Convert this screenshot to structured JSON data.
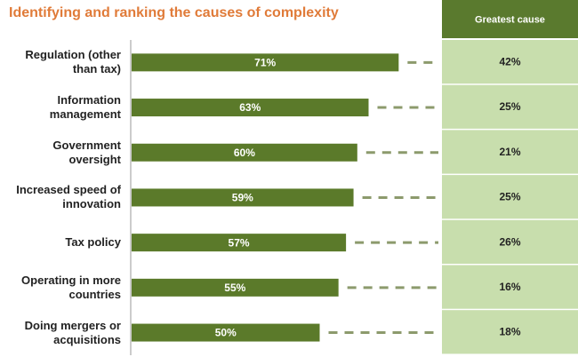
{
  "chart_data": {
    "type": "bar",
    "title": "Identifying and ranking the causes of complexity",
    "categories": [
      "Regulation (other than tax)",
      "Information management",
      "Government oversight",
      "Increased speed of innovation",
      "Tax policy",
      "Operating in more countries",
      "Doing mergers or acquisitions"
    ],
    "values": [
      71,
      63,
      60,
      59,
      57,
      55,
      50
    ],
    "value_labels": [
      "71%",
      "63%",
      "60%",
      "59%",
      "57%",
      "55%",
      "50%"
    ],
    "color": "#5b7a2a",
    "greatest_cause": {
      "title": "Greatest cause",
      "values": [
        42,
        25,
        21,
        25,
        26,
        16,
        18
      ],
      "value_labels": [
        "42%",
        "25%",
        "21%",
        "25%",
        "26%",
        "16%",
        "18%"
      ],
      "color": "#c8dead",
      "header_color": "#5a7a2e"
    }
  }
}
